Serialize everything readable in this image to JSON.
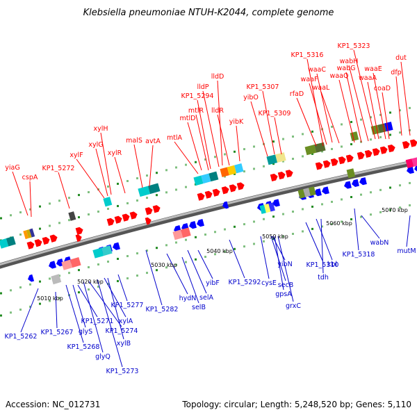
{
  "title": "Klebsiella pneumoniae NTUH-K2044, complete genome",
  "footer": {
    "accession": "Accession: NC_012731",
    "summary": "Topology: circular; Length: 5,248,520 bp; Genes: 5,110"
  },
  "kbp_ticks": [
    "5010 kbp",
    "5020 kbp",
    "5030 kbp",
    "5040 kbp",
    "5050 kbp",
    "5060 kbp",
    "5070 kbp"
  ],
  "upper_genes": [
    "yiaG",
    "cspA",
    "KP1_5272",
    "xylF",
    "xylG",
    "xylH",
    "xylR",
    "malS",
    "avtA",
    "mtlA",
    "mtlD",
    "mtlR",
    "KP1_5294",
    "lldP",
    "lldD",
    "lldR",
    "yibK",
    "yibO",
    "KP1_5307",
    "KP1_5309",
    "rfaD",
    "KP1_5316",
    "waaF",
    "waaC",
    "waaL",
    "waaQ",
    "wabG",
    "wabH",
    "KP1_5323",
    "waaA",
    "waaE",
    "coaD",
    "dfp",
    "dut"
  ],
  "lower_genes": [
    "KP1_5262",
    "KP1_5267",
    "KP1_5268",
    "glyS",
    "KP1_5271",
    "glyQ",
    "KP1_5274",
    "KP1_5273",
    "xylA",
    "xylB",
    "KP1_5277",
    "KP1_5282",
    "hydN",
    "selB",
    "selA",
    "yibF",
    "KP1_5292",
    "cysE",
    "secB",
    "gpsA",
    "grxC",
    "yibN",
    "KP1_5310",
    "kbl",
    "tdh",
    "KP1_5318",
    "wabN",
    "mutM"
  ],
  "colors": {
    "forward_gene": "#ff0000",
    "reverse_gene": "#0000ff",
    "forward_label": "#ff0000",
    "reverse_label": "#0000cc",
    "backbone": "#777777"
  }
}
